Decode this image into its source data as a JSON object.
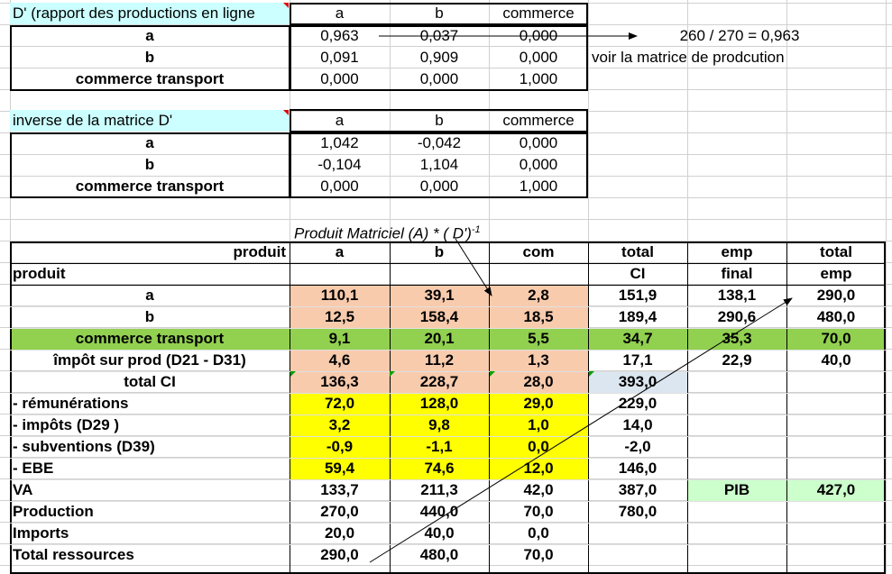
{
  "colors": {
    "cyan_header": "#ccffff",
    "salmon": "#f8cbad",
    "green": "#92d050",
    "yellow": "#ffff00",
    "light_blue": "#dce6f1",
    "light_green": "#ccffcc"
  },
  "table1": {
    "title": "D' (rapport des productions en ligne",
    "col_a": "a",
    "col_b": "b",
    "col_com": "commerce",
    "rows": [
      {
        "label": "a",
        "a": "0,963",
        "b": "0,037",
        "com": "0,000"
      },
      {
        "label": "b",
        "a": "0,091",
        "b": "0,909",
        "com": "0,000"
      },
      {
        "label": "commerce transport",
        "a": "0,000",
        "b": "0,000",
        "com": "1,000"
      }
    ],
    "note1": "260 / 270 = 0,963",
    "note2": "voir la matrice de prodcution"
  },
  "table2": {
    "title": "inverse de la matrice D'",
    "col_a": "a",
    "col_b": "b",
    "col_com": "commerce",
    "rows": [
      {
        "label": "a",
        "a": "1,042",
        "b": "-0,042",
        "com": "0,000"
      },
      {
        "label": "b",
        "a": "-0,104",
        "b": "1,104",
        "com": "0,000"
      },
      {
        "label": "commerce transport",
        "a": "0,000",
        "b": "0,000",
        "com": "1,000"
      }
    ]
  },
  "matrix_caption": "Produit Matriciel (A) * ( D')",
  "matrix_caption_sup": "-1",
  "table3": {
    "header1": {
      "produit": "produit",
      "a": "a",
      "b": "b",
      "com": "com",
      "total_ci": "total",
      "emp": "emp",
      "total_emp": "total"
    },
    "header2": {
      "produit": "produit",
      "total_ci": "CI",
      "emp": "final",
      "total_emp": "emp"
    },
    "rows": [
      {
        "label": "a",
        "a": "110,1",
        "b": "39,1",
        "com": "2,8",
        "total_ci": "151,9",
        "emp": "138,1",
        "total_emp": "290,0"
      },
      {
        "label": "b",
        "a": "12,5",
        "b": "158,4",
        "com": "18,5",
        "total_ci": "189,4",
        "emp": "290,6",
        "total_emp": "480,0"
      },
      {
        "label": "commerce transport",
        "a": "9,1",
        "b": "20,1",
        "com": "5,5",
        "total_ci": "34,7",
        "emp": "35,3",
        "total_emp": "70,0"
      },
      {
        "label": "împôt sur prod (D21 - D31)",
        "a": "4,6",
        "b": "11,2",
        "com": "1,3",
        "total_ci": "17,1",
        "emp": "22,9",
        "total_emp": "40,0"
      },
      {
        "label": "total CI",
        "a": "136,3",
        "b": "228,7",
        "com": "28,0",
        "total_ci": "393,0",
        "emp": "",
        "total_emp": ""
      },
      {
        "label": " - rémunérations",
        "a": "72,0",
        "b": "128,0",
        "com": "29,0",
        "total_ci": "229,0",
        "emp": "",
        "total_emp": ""
      },
      {
        "label": " - impôts (D29 )",
        "a": "3,2",
        "b": "9,8",
        "com": "1,0",
        "total_ci": "14,0",
        "emp": "",
        "total_emp": ""
      },
      {
        "label": " - subventions (D39)",
        "a": "-0,9",
        "b": "-1,1",
        "com": "0,0",
        "total_ci": "-2,0",
        "emp": "",
        "total_emp": ""
      },
      {
        "label": " - EBE",
        "a": "59,4",
        "b": "74,6",
        "com": "12,0",
        "total_ci": "146,0",
        "emp": "",
        "total_emp": ""
      },
      {
        "label": "VA",
        "a": "133,7",
        "b": "211,3",
        "com": "42,0",
        "total_ci": "387,0",
        "emp": "PIB",
        "total_emp": "427,0"
      },
      {
        "label": "Production",
        "a": "270,0",
        "b": "440,0",
        "com": "70,0",
        "total_ci": "780,0",
        "emp": "",
        "total_emp": ""
      },
      {
        "label": "Imports",
        "a": "20,0",
        "b": "40,0",
        "com": "0,0",
        "total_ci": "",
        "emp": "",
        "total_emp": ""
      },
      {
        "label": "Total ressources",
        "a": "290,0",
        "b": "480,0",
        "com": "70,0",
        "total_ci": "",
        "emp": "",
        "total_emp": ""
      }
    ]
  }
}
